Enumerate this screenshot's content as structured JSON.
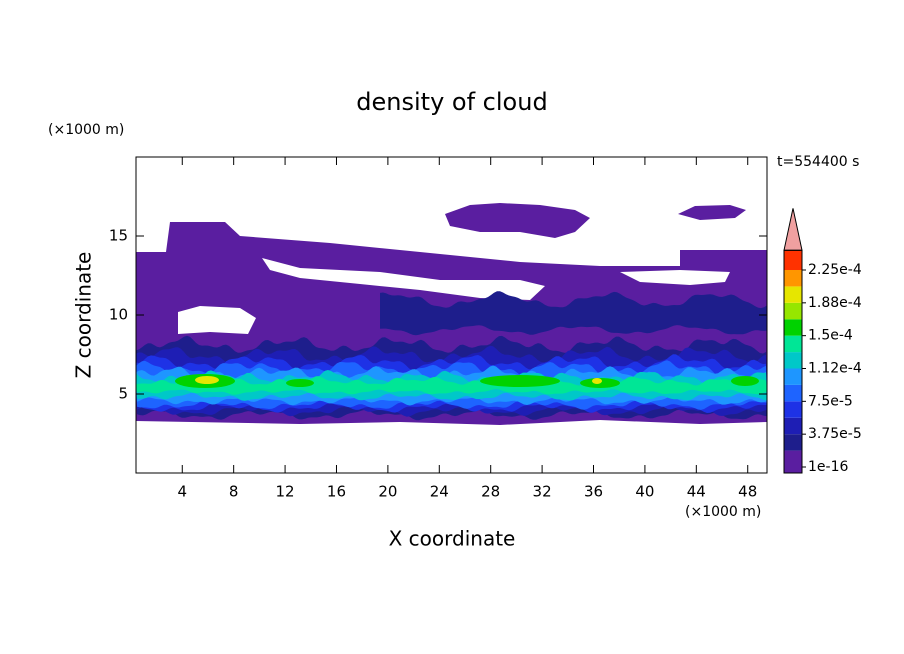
{
  "chart_data": {
    "type": "contour",
    "title": "density of cloud",
    "x_label": "X coordinate",
    "y_label": "Z coordinate",
    "x_unit": "(×1000 m)",
    "y_unit": "(×1000 m)",
    "annotation": "t=554400 s",
    "xlim": [
      0.4,
      49.5
    ],
    "ylim": [
      0,
      20
    ],
    "xticks": [
      4,
      8,
      12,
      16,
      20,
      24,
      28,
      32,
      36,
      40,
      44,
      48
    ],
    "yticks": [
      5,
      10,
      15
    ],
    "colorbar": {
      "levels": [
        1e-16,
        1.875e-05,
        3.75e-05,
        5.625e-05,
        7.5e-05,
        9.375e-05,
        0.0001125,
        0.00013125,
        0.00015,
        0.00016875,
        0.0001875,
        0.00020625,
        0.000225
      ],
      "ticks": [
        1e-16,
        {
          "value": 3.75e-05,
          "label": "3.75e-5"
        },
        {
          "value": 7.5e-05,
          "label": "7.5e-5"
        },
        {
          "value": 0.0001125,
          "label": "1.12e-4"
        },
        {
          "value": 0.00015,
          "label": "1.5e-4"
        },
        {
          "value": 0.0001875,
          "label": "1.88e-4"
        },
        {
          "value": 0.000225,
          "label": "2.25e-4"
        }
      ],
      "colors": [
        "#5a1ea0",
        "#1e1e8c",
        "#1e1eb4",
        "#1e32e6",
        "#1e64ff",
        "#1e96ff",
        "#00c8c8",
        "#00e696",
        "#00d200",
        "#96e600",
        "#e6e600",
        "#ff9600",
        "#ff3200"
      ],
      "over_color": "#f0a0a0"
    }
  }
}
